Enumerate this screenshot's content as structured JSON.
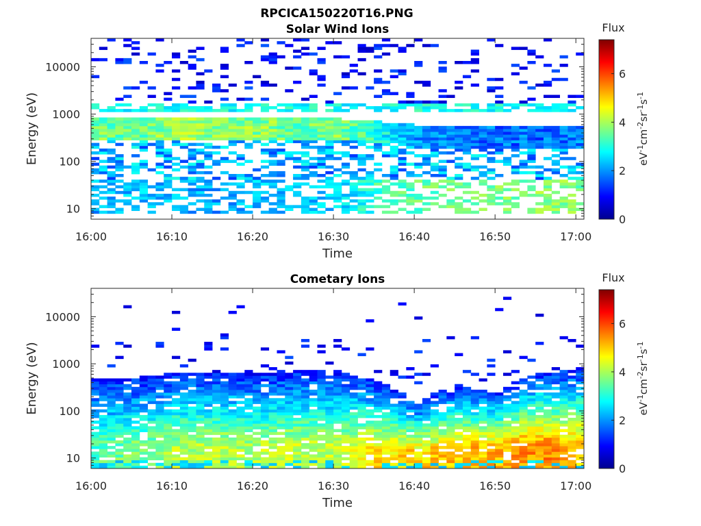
{
  "figure_title": "RPCICA150220T16.PNG",
  "colormap": [
    "#00008f",
    "#0000ff",
    "#0080ff",
    "#00ffff",
    "#80ff80",
    "#ffff00",
    "#ff8000",
    "#ff0000",
    "#800000"
  ],
  "chart_data": [
    {
      "type": "heatmap",
      "title": "Solar Wind Ions",
      "xlabel": "Time",
      "ylabel": "Energy (eV)",
      "x_ticks": [
        "16:00",
        "16:10",
        "16:20",
        "16:30",
        "16:40",
        "16:50",
        "17:00"
      ],
      "y_ticks": [
        "10",
        "100",
        "1000",
        "10000"
      ],
      "y_scale": "log",
      "xlim": [
        "16:00",
        "17:01"
      ],
      "ylim": [
        6,
        40000
      ],
      "colorbar": {
        "title": "Flux",
        "label": "eV-1cm-2sr-1s-1",
        "ticks": [
          "0",
          "2",
          "4",
          "6"
        ],
        "range": [
          0,
          7.4
        ]
      },
      "grid": false,
      "profile_by_5min": [
        {
          "t": "16:00",
          "band_eV": [
            300,
            800
          ],
          "peak_flux": 4.2,
          "high_band_eV": [
            1100,
            1700
          ],
          "low_band_eV": [
            8,
            40
          ],
          "low_flux": 2.2
        },
        {
          "t": "16:05",
          "band_eV": [
            300,
            800
          ],
          "peak_flux": 4.0,
          "high_band_eV": [
            1100,
            1700
          ],
          "low_band_eV": [
            8,
            40
          ],
          "low_flux": 2.3
        },
        {
          "t": "16:10",
          "band_eV": [
            300,
            800
          ],
          "peak_flux": 4.6,
          "high_band_eV": [
            1100,
            1700
          ],
          "low_band_eV": [
            8,
            40
          ],
          "low_flux": 2.2
        },
        {
          "t": "16:15",
          "band_eV": [
            300,
            800
          ],
          "peak_flux": 4.3,
          "high_band_eV": [
            1100,
            1700
          ],
          "low_band_eV": [
            8,
            40
          ],
          "low_flux": 2.1
        },
        {
          "t": "16:20",
          "band_eV": [
            300,
            800
          ],
          "peak_flux": 4.4,
          "high_band_eV": [
            1100,
            1700
          ],
          "low_band_eV": [
            8,
            40
          ],
          "low_flux": 2.3
        },
        {
          "t": "16:25",
          "band_eV": [
            300,
            800
          ],
          "peak_flux": 4.1,
          "high_band_eV": [
            1100,
            1700
          ],
          "low_band_eV": [
            8,
            40
          ],
          "low_flux": 2.3
        },
        {
          "t": "16:30",
          "band_eV": [
            300,
            800
          ],
          "peak_flux": 4.3,
          "high_band_eV": [
            1100,
            1700
          ],
          "low_band_eV": [
            8,
            40
          ],
          "low_flux": 2.4
        },
        {
          "t": "16:35",
          "band_eV": [
            250,
            700
          ],
          "peak_flux": 3.5,
          "high_band_eV": [
            1100,
            1700
          ],
          "low_band_eV": [
            8,
            40
          ],
          "low_flux": 3.2
        },
        {
          "t": "16:40",
          "band_eV": [
            200,
            600
          ],
          "peak_flux": 2.6,
          "high_band_eV": [
            1100,
            1700
          ],
          "low_band_eV": [
            8,
            40
          ],
          "low_flux": 3.5
        },
        {
          "t": "16:45",
          "band_eV": [
            200,
            600
          ],
          "peak_flux": 2.4,
          "high_band_eV": [
            1100,
            1700
          ],
          "low_band_eV": [
            8,
            40
          ],
          "low_flux": 3.6
        },
        {
          "t": "16:50",
          "band_eV": [
            200,
            600
          ],
          "peak_flux": 2.3,
          "high_band_eV": [
            1100,
            1700
          ],
          "low_band_eV": [
            8,
            40
          ],
          "low_flux": 3.7
        },
        {
          "t": "16:55",
          "band_eV": [
            200,
            600
          ],
          "peak_flux": 2.3,
          "high_band_eV": [
            1100,
            1700
          ],
          "low_band_eV": [
            8,
            40
          ],
          "low_flux": 3.8
        },
        {
          "t": "17:00",
          "band_eV": [
            200,
            600
          ],
          "peak_flux": 2.5,
          "high_band_eV": [
            1100,
            1700
          ],
          "low_band_eV": [
            8,
            40
          ],
          "low_flux": 3.6
        }
      ]
    },
    {
      "type": "heatmap",
      "title": "Cometary Ions",
      "xlabel": "Time",
      "ylabel": "Energy (eV)",
      "x_ticks": [
        "16:00",
        "16:10",
        "16:20",
        "16:30",
        "16:40",
        "16:50",
        "17:00"
      ],
      "y_ticks": [
        "10",
        "100",
        "1000",
        "10000"
      ],
      "y_scale": "log",
      "xlim": [
        "16:00",
        "17:01"
      ],
      "ylim": [
        6,
        40000
      ],
      "colorbar": {
        "title": "Flux",
        "label": "eV-1cm-2sr-1s-1",
        "ticks": [
          "0",
          "2",
          "4",
          "6"
        ],
        "range": [
          0,
          7.4
        ]
      },
      "grid": false,
      "profile_by_5min": [
        {
          "t": "16:00",
          "upper_edge_eV": 500,
          "peak_flux": 3.4
        },
        {
          "t": "16:05",
          "upper_edge_eV": 500,
          "peak_flux": 3.8
        },
        {
          "t": "16:10",
          "upper_edge_eV": 650,
          "peak_flux": 4.1
        },
        {
          "t": "16:15",
          "upper_edge_eV": 650,
          "peak_flux": 4.2
        },
        {
          "t": "16:20",
          "upper_edge_eV": 650,
          "peak_flux": 4.1
        },
        {
          "t": "16:25",
          "upper_edge_eV": 700,
          "peak_flux": 4.3
        },
        {
          "t": "16:30",
          "upper_edge_eV": 700,
          "peak_flux": 4.2
        },
        {
          "t": "16:35",
          "upper_edge_eV": 400,
          "peak_flux": 4.9
        },
        {
          "t": "16:40",
          "upper_edge_eV": 150,
          "peak_flux": 5.0
        },
        {
          "t": "16:45",
          "upper_edge_eV": 350,
          "peak_flux": 5.2
        },
        {
          "t": "16:50",
          "upper_edge_eV": 250,
          "peak_flux": 5.3
        },
        {
          "t": "16:55",
          "upper_edge_eV": 650,
          "peak_flux": 5.6
        },
        {
          "t": "17:00",
          "upper_edge_eV": 800,
          "peak_flux": 5.2
        }
      ]
    }
  ]
}
